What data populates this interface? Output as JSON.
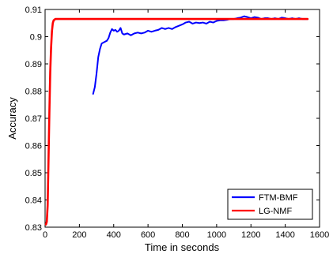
{
  "chart_data": {
    "type": "line",
    "title": "",
    "xlabel": "Time in seconds",
    "ylabel": "Accuracy",
    "xlim": [
      0,
      1600
    ],
    "ylim": [
      0.83,
      0.91
    ],
    "xticks": [
      "0",
      "200",
      "400",
      "600",
      "800",
      "1000",
      "1200",
      "1400",
      "1600"
    ],
    "yticks": [
      "0.83",
      "0.84",
      "0.85",
      "0.86",
      "0.87",
      "0.88",
      "0.89",
      "0.9",
      "0.91"
    ],
    "grid": false,
    "legend_position": "bottom-right",
    "series": [
      {
        "name": "FTM-BMF",
        "color": "#0000ff",
        "points": [
          [
            280,
            0.879
          ],
          [
            290,
            0.8815
          ],
          [
            300,
            0.8865
          ],
          [
            310,
            0.8925
          ],
          [
            320,
            0.8955
          ],
          [
            330,
            0.8975
          ],
          [
            345,
            0.898
          ],
          [
            360,
            0.8985
          ],
          [
            370,
            0.8995
          ],
          [
            380,
            0.9015
          ],
          [
            390,
            0.9028
          ],
          [
            400,
            0.9022
          ],
          [
            410,
            0.9025
          ],
          [
            420,
            0.9018
          ],
          [
            430,
            0.9022
          ],
          [
            440,
            0.9032
          ],
          [
            450,
            0.9012
          ],
          [
            460,
            0.9008
          ],
          [
            480,
            0.9012
          ],
          [
            500,
            0.9005
          ],
          [
            520,
            0.9012
          ],
          [
            540,
            0.9015
          ],
          [
            560,
            0.9012
          ],
          [
            580,
            0.9015
          ],
          [
            600,
            0.9022
          ],
          [
            620,
            0.9018
          ],
          [
            640,
            0.9022
          ],
          [
            660,
            0.9025
          ],
          [
            680,
            0.9032
          ],
          [
            700,
            0.9028
          ],
          [
            720,
            0.9032
          ],
          [
            740,
            0.9028
          ],
          [
            760,
            0.9035
          ],
          [
            780,
            0.904
          ],
          [
            800,
            0.9045
          ],
          [
            820,
            0.9052
          ],
          [
            840,
            0.9055
          ],
          [
            860,
            0.9048
          ],
          [
            880,
            0.9052
          ],
          [
            900,
            0.905
          ],
          [
            920,
            0.9052
          ],
          [
            940,
            0.9048
          ],
          [
            960,
            0.9055
          ],
          [
            980,
            0.9052
          ],
          [
            1000,
            0.9058
          ],
          [
            1020,
            0.906
          ],
          [
            1040,
            0.906
          ],
          [
            1060,
            0.9062
          ],
          [
            1080,
            0.9065
          ],
          [
            1100,
            0.9065
          ],
          [
            1120,
            0.9068
          ],
          [
            1140,
            0.907
          ],
          [
            1160,
            0.9075
          ],
          [
            1180,
            0.9072
          ],
          [
            1200,
            0.9068
          ],
          [
            1220,
            0.9072
          ],
          [
            1240,
            0.907
          ],
          [
            1260,
            0.9065
          ],
          [
            1280,
            0.9068
          ],
          [
            1300,
            0.9068
          ],
          [
            1320,
            0.9065
          ],
          [
            1340,
            0.9068
          ],
          [
            1360,
            0.9065
          ],
          [
            1380,
            0.907
          ],
          [
            1400,
            0.9068
          ],
          [
            1420,
            0.9065
          ],
          [
            1440,
            0.9068
          ],
          [
            1460,
            0.9065
          ],
          [
            1480,
            0.9068
          ],
          [
            1500,
            0.9065
          ],
          [
            1530,
            0.9065
          ]
        ]
      },
      {
        "name": "LG-NMF",
        "color": "#ff0000",
        "points": [
          [
            5,
            0.831
          ],
          [
            10,
            0.832
          ],
          [
            15,
            0.838
          ],
          [
            20,
            0.855
          ],
          [
            25,
            0.872
          ],
          [
            30,
            0.887
          ],
          [
            35,
            0.896
          ],
          [
            40,
            0.902
          ],
          [
            45,
            0.905
          ],
          [
            50,
            0.906
          ],
          [
            60,
            0.9065
          ],
          [
            80,
            0.9065
          ],
          [
            200,
            0.9065
          ],
          [
            400,
            0.9065
          ],
          [
            600,
            0.9065
          ],
          [
            800,
            0.9065
          ],
          [
            1000,
            0.9065
          ],
          [
            1200,
            0.9065
          ],
          [
            1400,
            0.9065
          ],
          [
            1530,
            0.9065
          ]
        ]
      }
    ]
  }
}
